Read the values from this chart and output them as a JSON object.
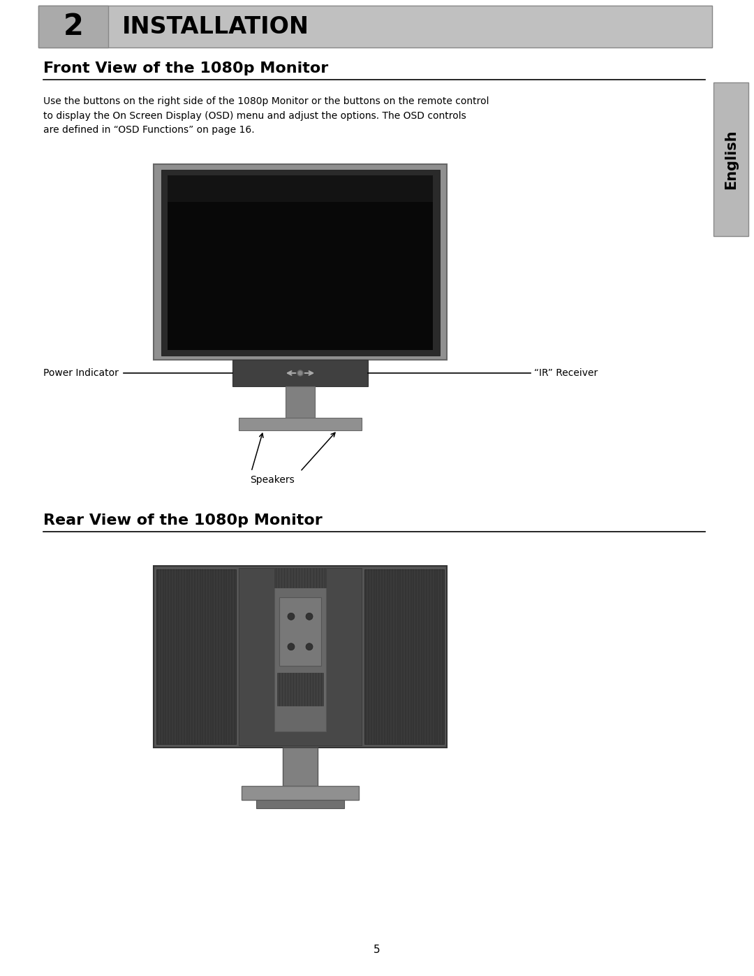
{
  "page_bg": "#ffffff",
  "header_bg": "#c0c0c0",
  "header_number": "2",
  "header_title": "INSTALLATION",
  "sidebar_bg": "#b8b8b8",
  "sidebar_text": "English",
  "section1_title": "Front View of the 1080p Monitor",
  "section1_desc": "Use the buttons on the right side of the 1080p Monitor or the buttons on the remote control\nto display the On Screen Display (OSD) menu and adjust the options. The OSD controls\nare defined in “OSD Functions” on page 16.",
  "label_power": "Power Indicator",
  "label_ir": "“IR” Receiver",
  "label_speakers": "Speakers",
  "section2_title": "Rear View of the 1080p Monitor",
  "page_number": "5"
}
